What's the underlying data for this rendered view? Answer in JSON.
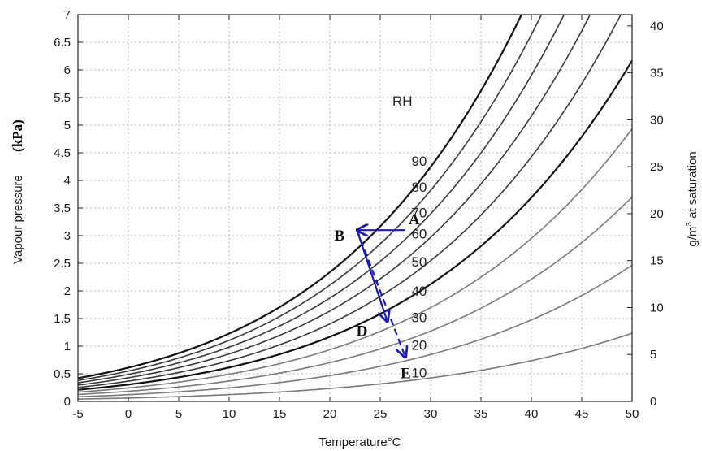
{
  "chart_data": {
    "type": "line",
    "xlabel": "Temperature°C",
    "ylabel_left": "Vapour pressure",
    "ylabel_left_unit": "(kPa)",
    "ylabel_right_pre": "g/m",
    "ylabel_right_sup": "3",
    "ylabel_right_post": " at saturation",
    "rh_header": "RH",
    "xlim": [
      -5,
      50
    ],
    "ylim_left": [
      0,
      7
    ],
    "ylim_right": [
      0,
      41.2
    ],
    "x_ticks": [
      -5,
      0,
      5,
      10,
      15,
      20,
      25,
      30,
      35,
      40,
      45,
      50
    ],
    "y_left_ticks": [
      0,
      0.5,
      1,
      1.5,
      2,
      2.5,
      3,
      3.5,
      4,
      4.5,
      5,
      5.5,
      6,
      6.5,
      7
    ],
    "y_right_ticks": [
      0,
      5,
      10,
      15,
      20,
      25,
      30,
      35,
      40
    ],
    "grid": true,
    "rh_curves": [
      {
        "rh": 100,
        "label": "",
        "color": "#111111"
      },
      {
        "rh": 90,
        "label": "90",
        "color": "#3a3a3a"
      },
      {
        "rh": 80,
        "label": "80",
        "color": "#3a3a3a"
      },
      {
        "rh": 70,
        "label": "70",
        "color": "#3a3a3a"
      },
      {
        "rh": 60,
        "label": "60",
        "color": "#3a3a3a"
      },
      {
        "rh": 50,
        "label": "50",
        "color": "#111111"
      },
      {
        "rh": 40,
        "label": "40",
        "color": "#7a7a7a"
      },
      {
        "rh": 30,
        "label": "30",
        "color": "#7a7a7a"
      },
      {
        "rh": 20,
        "label": "20",
        "color": "#7a7a7a"
      },
      {
        "rh": 10,
        "label": "10",
        "color": "#7a7a7a"
      }
    ],
    "points": [
      {
        "name": "A",
        "x": 27.5,
        "y": 3.1
      },
      {
        "name": "B",
        "x": 22.7,
        "y": 3.1
      },
      {
        "name": "D",
        "x": 25.7,
        "y": 1.45
      },
      {
        "name": "E",
        "x": 27.5,
        "y": 0.8
      }
    ],
    "arrows": [
      {
        "from": "A",
        "to": "B",
        "style": "solid"
      },
      {
        "from": "B",
        "to": "D",
        "style": "solid"
      },
      {
        "from": "B",
        "to": "E",
        "style": "dashed"
      }
    ],
    "arrow_color": "#1c1cb0"
  }
}
